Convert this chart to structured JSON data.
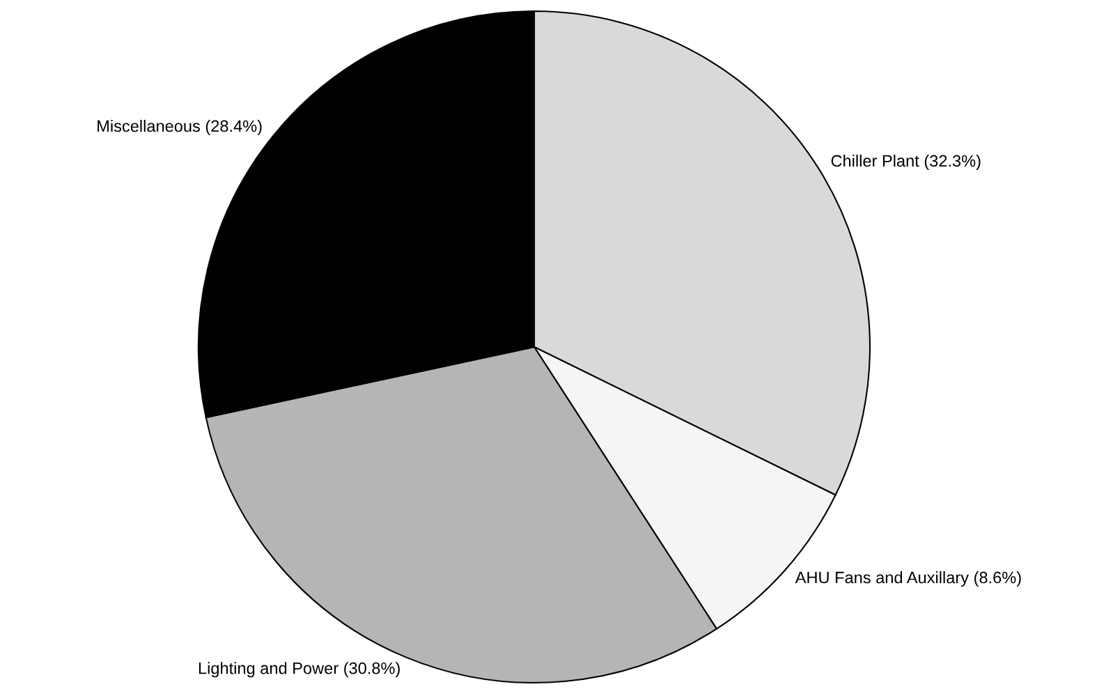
{
  "chart_data": {
    "type": "pie",
    "categories": [
      "Chiller Plant (32.3%)",
      "AHU Fans and Auxillary (8.6%)",
      "Lighting and Power (30.8%)",
      "Miscellaneous (28.4%)"
    ],
    "values": [
      32.3,
      8.6,
      30.8,
      28.4
    ],
    "colors": [
      "#d9d9d9",
      "#f5f5f5",
      "#b5b5b5",
      "#000000"
    ]
  }
}
